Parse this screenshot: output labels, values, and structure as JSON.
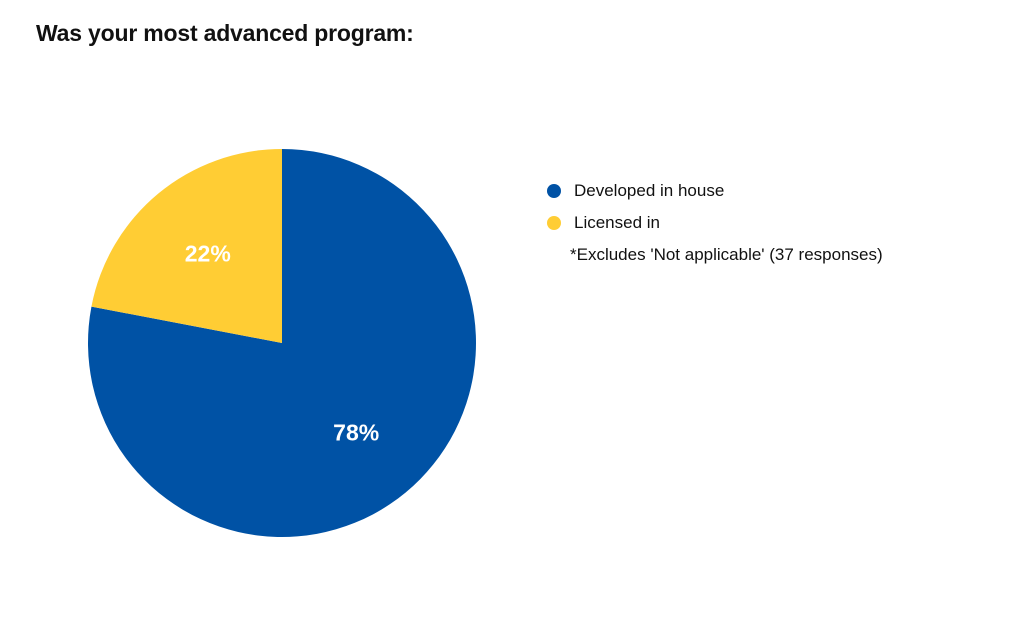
{
  "chart_data": {
    "type": "pie",
    "title": "Was your most advanced program:",
    "categories": [
      "Developed in house",
      "Licensed in"
    ],
    "values": [
      78,
      22
    ],
    "value_labels": [
      "78%",
      "22%"
    ],
    "colors": [
      "#0052A5",
      "#FFCD34"
    ],
    "start": "12 o'clock",
    "direction": "clockwise",
    "legend": {
      "placement": "right",
      "note": "*Excludes 'Not applicable' (37 responses)"
    }
  }
}
